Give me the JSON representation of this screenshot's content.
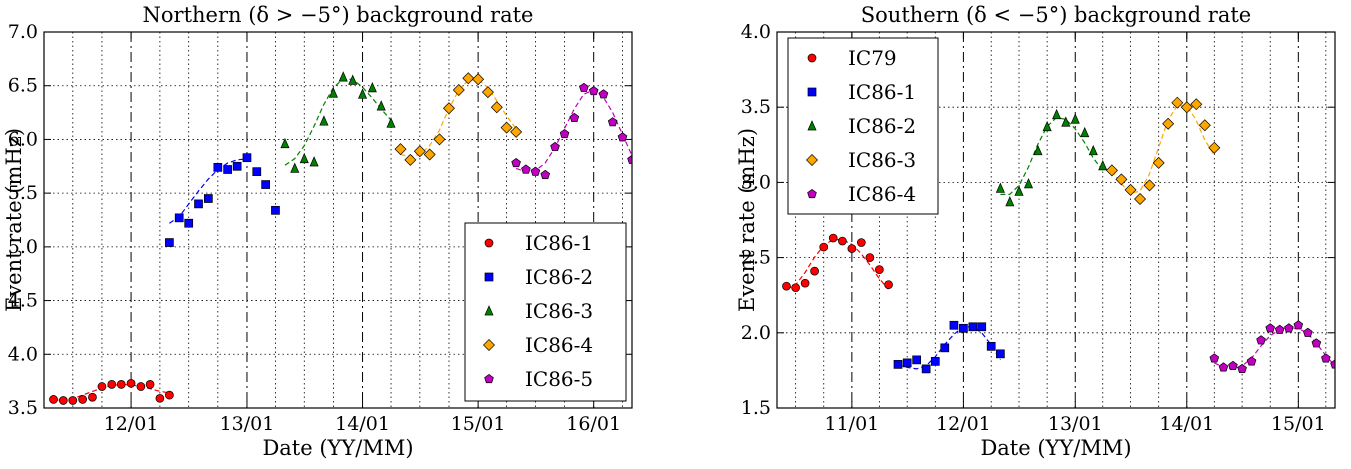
{
  "chart_data": [
    {
      "type": "scatter",
      "title": "Northern (δ > −5°) background rate",
      "xlabel": "Date (YY/MM)",
      "ylabel": "Event rate (mHz)",
      "x_date_range": [
        "2011-04-01",
        "2016-05-01"
      ],
      "ylim": [
        3.5,
        7.0
      ],
      "yticks": [
        "3.5",
        "4.0",
        "4.5",
        "5.0",
        "5.5",
        "6.0",
        "6.5",
        "7.0"
      ],
      "xticks": [
        {
          "date": "2012-01-01",
          "label": "12/01"
        },
        {
          "date": "2013-01-01",
          "label": "13/01"
        },
        {
          "date": "2014-01-01",
          "label": "14/01"
        },
        {
          "date": "2015-01-01",
          "label": "15/01"
        },
        {
          "date": "2016-01-01",
          "label": "16/01"
        }
      ],
      "grid": true,
      "legend_position": "lower-right",
      "series": [
        {
          "name": "IC86-1",
          "color": "#ff0000",
          "marker": "circle",
          "x": [
            "2011-05-01",
            "2011-06-01",
            "2011-07-01",
            "2011-08-01",
            "2011-09-01",
            "2011-10-01",
            "2011-11-01",
            "2011-12-01",
            "2012-01-01",
            "2012-02-01",
            "2012-03-01",
            "2012-04-01",
            "2012-05-01"
          ],
          "y": [
            3.58,
            3.57,
            3.57,
            3.58,
            3.6,
            3.7,
            3.72,
            3.72,
            3.73,
            3.7,
            3.72,
            3.59,
            3.62
          ],
          "fit": [
            [
              3.57,
              3.58,
              3.6,
              3.64,
              3.68,
              3.71,
              3.72,
              3.71,
              3.69,
              3.66,
              3.64
            ],
            [
              "2011-05-01",
              "2012-05-01"
            ]
          ]
        },
        {
          "name": "IC86-2",
          "color": "#0000ff",
          "marker": "square",
          "x": [
            "2012-05-01",
            "2012-06-01",
            "2012-07-01",
            "2012-08-01",
            "2012-09-01",
            "2012-10-01",
            "2012-11-01",
            "2012-12-01",
            "2013-01-01",
            "2013-02-01",
            "2013-03-01",
            "2013-04-01"
          ],
          "y": [
            5.04,
            5.27,
            5.22,
            5.4,
            5.45,
            5.74,
            5.72,
            5.75,
            5.83,
            5.7,
            5.58,
            5.34
          ],
          "fit": [
            [
              5.22,
              5.28,
              5.4,
              5.52,
              5.63,
              5.72,
              5.78,
              5.81,
              5.82
            ],
            [
              "2012-05-01",
              "2013-01-01"
            ]
          ]
        },
        {
          "name": "IC86-3",
          "color": "#008000",
          "marker": "triangle",
          "x": [
            "2013-05-01",
            "2013-06-01",
            "2013-07-01",
            "2013-08-01",
            "2013-09-01",
            "2013-10-01",
            "2013-11-01",
            "2013-12-01",
            "2014-01-01",
            "2014-02-01",
            "2014-03-01",
            "2014-04-01"
          ],
          "y": [
            5.96,
            5.73,
            5.82,
            5.79,
            6.17,
            6.43,
            6.58,
            6.55,
            6.42,
            6.48,
            6.31,
            6.15
          ],
          "fit": [
            [
              5.76,
              5.82,
              5.94,
              6.12,
              6.32,
              6.48,
              6.56,
              6.56,
              6.49,
              6.39,
              6.28,
              6.18
            ],
            [
              "2013-05-01",
              "2014-04-01"
            ]
          ]
        },
        {
          "name": "IC86-4",
          "color": "#ffa500",
          "marker": "diamond",
          "x": [
            "2014-05-01",
            "2014-06-01",
            "2014-07-01",
            "2014-08-01",
            "2014-09-01",
            "2014-10-01",
            "2014-11-01",
            "2014-12-01",
            "2015-01-01",
            "2015-02-01",
            "2015-03-01",
            "2015-04-01",
            "2015-05-01"
          ],
          "y": [
            5.91,
            5.81,
            5.89,
            5.86,
            6.0,
            6.29,
            6.46,
            6.57,
            6.56,
            6.44,
            6.3,
            6.11,
            6.07
          ],
          "fit": [
            [
              5.86,
              5.84,
              5.86,
              5.94,
              6.08,
              6.28,
              6.45,
              6.55,
              6.56,
              6.49,
              6.36,
              6.22,
              6.1
            ],
            [
              "2014-05-01",
              "2015-05-01"
            ]
          ]
        },
        {
          "name": "IC86-5",
          "color": "#c000c0",
          "marker": "pentagon",
          "x": [
            "2015-05-01",
            "2015-06-01",
            "2015-07-01",
            "2015-08-01",
            "2015-09-01",
            "2015-10-01",
            "2015-11-01",
            "2015-12-01",
            "2016-01-01",
            "2016-02-01",
            "2016-03-01",
            "2016-04-01",
            "2016-05-01"
          ],
          "y": [
            5.78,
            5.72,
            5.7,
            5.67,
            5.93,
            6.05,
            6.2,
            6.48,
            6.45,
            6.42,
            6.16,
            6.02,
            5.81
          ],
          "fit": [
            [
              5.73,
              5.7,
              5.71,
              5.78,
              5.92,
              6.1,
              6.28,
              6.42,
              6.46,
              6.4,
              6.25,
              6.05,
              5.85
            ],
            [
              "2015-05-01",
              "2016-05-01"
            ]
          ]
        }
      ]
    },
    {
      "type": "scatter",
      "title": "Southern (δ < −5°) background rate",
      "xlabel": "Date (YY/MM)",
      "ylabel": "Event rate (mHz)",
      "x_date_range": [
        "2010-05-01",
        "2015-05-01"
      ],
      "ylim": [
        1.5,
        4.0
      ],
      "yticks": [
        "1.5",
        "2.0",
        "2.5",
        "3.0",
        "3.5",
        "4.0"
      ],
      "xticks": [
        {
          "date": "2011-01-01",
          "label": "11/01"
        },
        {
          "date": "2012-01-01",
          "label": "12/01"
        },
        {
          "date": "2013-01-01",
          "label": "13/01"
        },
        {
          "date": "2014-01-01",
          "label": "14/01"
        },
        {
          "date": "2015-01-01",
          "label": "15/01"
        }
      ],
      "grid": true,
      "legend_position": "upper-left",
      "series": [
        {
          "name": "IC79",
          "color": "#ff0000",
          "marker": "circle",
          "x": [
            "2010-06-01",
            "2010-07-01",
            "2010-08-01",
            "2010-09-01",
            "2010-10-01",
            "2010-11-01",
            "2010-12-01",
            "2011-01-01",
            "2011-02-01",
            "2011-03-01",
            "2011-04-01",
            "2011-05-01"
          ],
          "y": [
            2.31,
            2.3,
            2.33,
            2.41,
            2.57,
            2.63,
            2.61,
            2.56,
            2.6,
            2.5,
            2.42,
            2.32
          ],
          "fit": [
            [
              2.29,
              2.32,
              2.4,
              2.5,
              2.58,
              2.62,
              2.62,
              2.59,
              2.53,
              2.45,
              2.36,
              2.29
            ],
            [
              "2010-06-01",
              "2011-05-01"
            ]
          ]
        },
        {
          "name": "IC86-1",
          "color": "#0000ff",
          "marker": "square",
          "x": [
            "2011-06-01",
            "2011-07-01",
            "2011-08-01",
            "2011-09-01",
            "2011-10-01",
            "2011-11-01",
            "2011-12-01",
            "2012-01-01",
            "2012-02-01",
            "2012-03-01",
            "2012-04-01",
            "2012-05-01"
          ],
          "y": [
            1.79,
            1.8,
            1.82,
            1.76,
            1.81,
            1.9,
            2.05,
            2.03,
            2.04,
            2.04,
            1.91,
            1.86
          ],
          "fit": [
            [
              1.79,
              1.77,
              1.76,
              1.78,
              1.84,
              1.92,
              1.99,
              2.04,
              2.04,
              2.0,
              1.92,
              1.82
            ],
            [
              "2011-06-01",
              "2012-05-01"
            ]
          ]
        },
        {
          "name": "IC86-2",
          "color": "#008000",
          "marker": "triangle",
          "x": [
            "2012-05-01",
            "2012-06-01",
            "2012-07-01",
            "2012-08-01",
            "2012-09-01",
            "2012-10-01",
            "2012-11-01",
            "2012-12-01",
            "2013-01-01",
            "2013-02-01",
            "2013-03-01",
            "2013-04-01"
          ],
          "y": [
            2.96,
            2.87,
            2.94,
            2.99,
            3.21,
            3.37,
            3.45,
            3.4,
            3.42,
            3.33,
            3.21,
            3.11
          ],
          "fit": [
            [
              2.92,
              2.92,
              2.98,
              3.1,
              3.25,
              3.37,
              3.43,
              3.42,
              3.36,
              3.27,
              3.16,
              3.08
            ],
            [
              "2012-05-01",
              "2013-04-01"
            ]
          ]
        },
        {
          "name": "IC86-3",
          "color": "#ffa500",
          "marker": "diamond",
          "x": [
            "2013-05-01",
            "2013-06-01",
            "2013-07-01",
            "2013-08-01",
            "2013-09-01",
            "2013-10-01",
            "2013-11-01",
            "2013-12-01",
            "2014-01-01",
            "2014-02-01",
            "2014-03-01",
            "2014-04-01"
          ],
          "y": [
            3.08,
            3.02,
            2.95,
            2.89,
            2.98,
            3.13,
            3.39,
            3.53,
            3.5,
            3.52,
            3.38,
            3.23
          ],
          "fit": [
            [
              3.08,
              2.99,
              2.93,
              2.94,
              3.05,
              3.23,
              3.41,
              3.51,
              3.51,
              3.42,
              3.28,
              3.18
            ],
            [
              "2013-05-01",
              "2014-04-01"
            ]
          ]
        },
        {
          "name": "IC86-4",
          "color": "#c000c0",
          "marker": "pentagon",
          "x": [
            "2014-04-01",
            "2014-05-01",
            "2014-06-01",
            "2014-07-01",
            "2014-08-01",
            "2014-09-01",
            "2014-10-01",
            "2014-11-01",
            "2014-12-01",
            "2015-01-01",
            "2015-02-01",
            "2015-03-01",
            "2015-04-01",
            "2015-05-01"
          ],
          "y": [
            1.83,
            1.77,
            1.78,
            1.76,
            1.81,
            1.95,
            2.03,
            2.02,
            2.03,
            2.05,
            2.0,
            1.93,
            1.83,
            1.79
          ],
          "fit": [
            [
              1.8,
              1.77,
              1.76,
              1.78,
              1.83,
              1.91,
              1.98,
              2.02,
              2.03,
              2.03,
              2.0,
              1.93,
              1.85,
              1.78
            ],
            [
              "2014-04-01",
              "2015-05-01"
            ]
          ]
        }
      ]
    }
  ]
}
